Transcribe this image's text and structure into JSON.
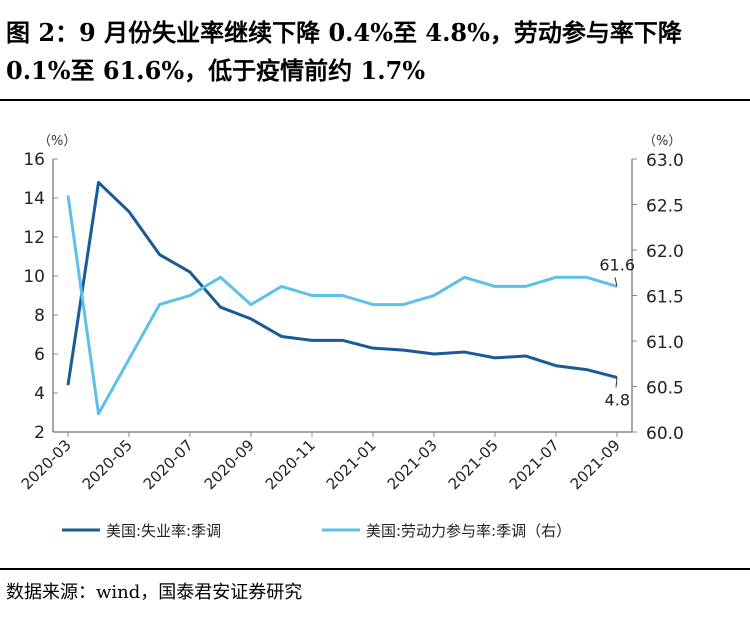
{
  "title": "图 2：9 月份失业率继续下降 0.4%至 4.8%，劳动参与率下降 0.1%至 61.6%，低于疫情前约 1.7%",
  "source": "数据来源：wind，国泰君安证券研究",
  "chart_data": {
    "type": "line",
    "x": [
      "2020-03",
      "2020-04",
      "2020-05",
      "2020-06",
      "2020-07",
      "2020-08",
      "2020-09",
      "2020-10",
      "2020-11",
      "2020-12",
      "2021-01",
      "2021-02",
      "2021-03",
      "2021-04",
      "2021-05",
      "2021-06",
      "2021-07",
      "2021-08",
      "2021-09"
    ],
    "x_tick_labels": [
      "2020-03",
      "2020-05",
      "2020-07",
      "2020-09",
      "2020-11",
      "2021-01",
      "2021-03",
      "2021-05",
      "2021-07",
      "2021-09"
    ],
    "left_axis": {
      "unit": "（%）",
      "ylim": [
        2,
        16
      ],
      "ticks": [
        "2",
        "4",
        "6",
        "8",
        "10",
        "12",
        "14",
        "16"
      ]
    },
    "right_axis": {
      "unit": "（%）",
      "ylim": [
        60.0,
        63.0
      ],
      "ticks": [
        "60.0",
        "60.5",
        "61.0",
        "61.5",
        "62.0",
        "62.5",
        "63.0"
      ]
    },
    "series": [
      {
        "name": "美国:失业率:季调",
        "axis": "left",
        "color": "#1a5a96",
        "values": [
          4.4,
          14.8,
          13.3,
          11.1,
          10.2,
          8.4,
          7.8,
          6.9,
          6.7,
          6.7,
          6.3,
          6.2,
          6.0,
          6.1,
          5.8,
          5.9,
          5.4,
          5.2,
          4.8
        ],
        "end_label": "4.8"
      },
      {
        "name": "美国:劳动力参与率:季调（右）",
        "axis": "right",
        "color": "#5bc0ea",
        "values": [
          62.6,
          60.2,
          60.8,
          61.4,
          61.5,
          61.7,
          61.4,
          61.6,
          61.5,
          61.5,
          61.4,
          61.4,
          61.5,
          61.7,
          61.6,
          61.6,
          61.7,
          61.7,
          61.6
        ],
        "end_label": "61.6"
      }
    ],
    "legend_position": "bottom"
  }
}
